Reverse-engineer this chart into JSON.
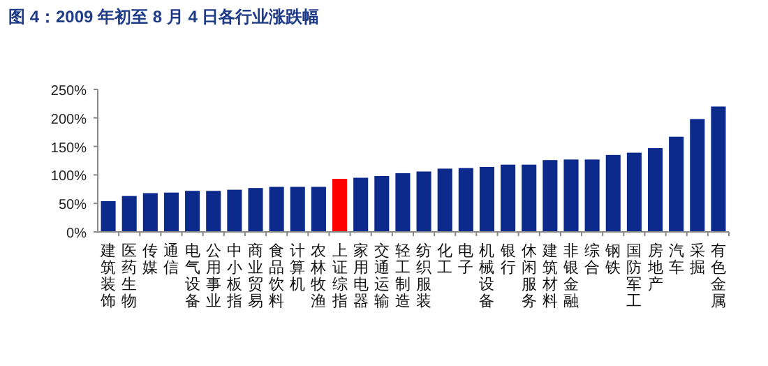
{
  "chart_data": {
    "type": "bar",
    "title": "图 4：2009 年初至 8 月 4 日各行业涨跌幅",
    "categories": [
      "建筑装饰",
      "医药生物",
      "传媒",
      "通信",
      "电气设备",
      "公用事业",
      "中小板指",
      "商业贸易",
      "食品饮料",
      "计算机",
      "农林牧渔",
      "上证综指",
      "家用电器",
      "交通运输",
      "轻工制造",
      "纺织服装",
      "化工",
      "电子",
      "机械设备",
      "银行",
      "休闲服务",
      "建筑材料",
      "非银金融",
      "综合",
      "钢铁",
      "国防军工",
      "房地产",
      "汽车",
      "采掘",
      "有色金属"
    ],
    "values": [
      54,
      63,
      68,
      69,
      72,
      72,
      74,
      77,
      79,
      79,
      79,
      93,
      95,
      98,
      103,
      106,
      111,
      112,
      114,
      118,
      118,
      126,
      127,
      127,
      135,
      139,
      147,
      167,
      198,
      220
    ],
    "colors": [
      "#0c2a8c",
      "#0c2a8c",
      "#0c2a8c",
      "#0c2a8c",
      "#0c2a8c",
      "#0c2a8c",
      "#0c2a8c",
      "#0c2a8c",
      "#0c2a8c",
      "#0c2a8c",
      "#0c2a8c",
      "#ff0000",
      "#0c2a8c",
      "#0c2a8c",
      "#0c2a8c",
      "#0c2a8c",
      "#0c2a8c",
      "#0c2a8c",
      "#0c2a8c",
      "#0c2a8c",
      "#0c2a8c",
      "#0c2a8c",
      "#0c2a8c",
      "#0c2a8c",
      "#0c2a8c",
      "#0c2a8c",
      "#0c2a8c",
      "#0c2a8c",
      "#0c2a8c",
      "#0c2a8c"
    ],
    "ylim": [
      0,
      250
    ],
    "yticks": [
      {
        "value": 0,
        "label": "0%"
      },
      {
        "value": 50,
        "label": "50%"
      },
      {
        "value": 100,
        "label": "100%"
      },
      {
        "value": 150,
        "label": "150%"
      },
      {
        "value": 200,
        "label": "200%"
      },
      {
        "value": 250,
        "label": "250%"
      }
    ],
    "grid": false
  }
}
